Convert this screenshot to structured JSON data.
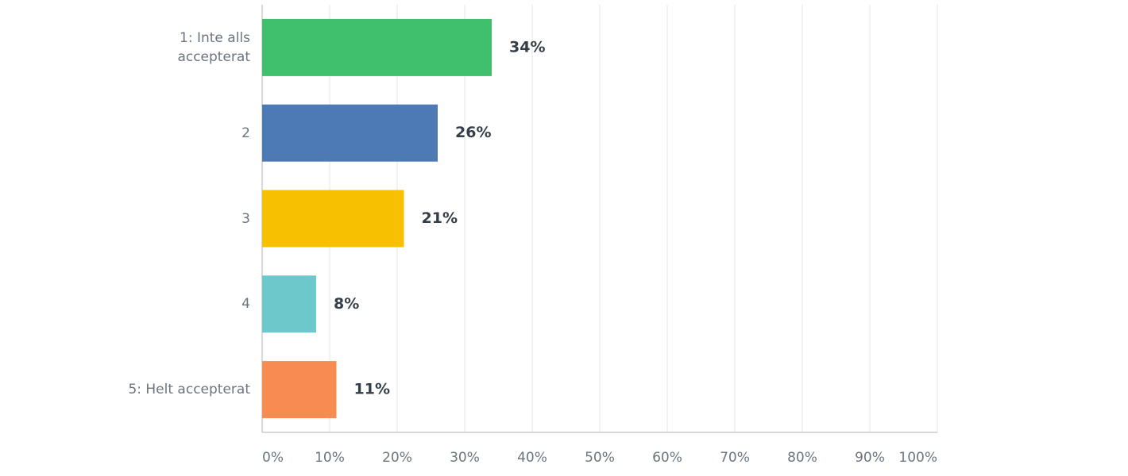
{
  "chart_data": {
    "type": "bar",
    "orientation": "horizontal",
    "categories": [
      "1: Inte alls accepterat",
      "2",
      "3",
      "4",
      "5: Helt accepterat"
    ],
    "values": [
      34,
      26,
      21,
      8,
      11
    ],
    "value_labels": [
      "34%",
      "26%",
      "21%",
      "8%",
      "11%"
    ],
    "colors": [
      "#40bf6c",
      "#4d79b5",
      "#f7c000",
      "#6dc8cb",
      "#f78c52"
    ],
    "xlim": [
      0,
      100
    ],
    "xticks": [
      {
        "value": 0,
        "label": "0%"
      },
      {
        "value": 10,
        "label": "10%"
      },
      {
        "value": 20,
        "label": "20%"
      },
      {
        "value": 30,
        "label": "30%"
      },
      {
        "value": 40,
        "label": "40%"
      },
      {
        "value": 50,
        "label": "50%"
      },
      {
        "value": 60,
        "label": "60%"
      },
      {
        "value": 70,
        "label": "70%"
      },
      {
        "value": 80,
        "label": "80%"
      },
      {
        "value": 90,
        "label": "90%"
      },
      {
        "value": 100,
        "label": "100%"
      }
    ],
    "grid": true
  }
}
